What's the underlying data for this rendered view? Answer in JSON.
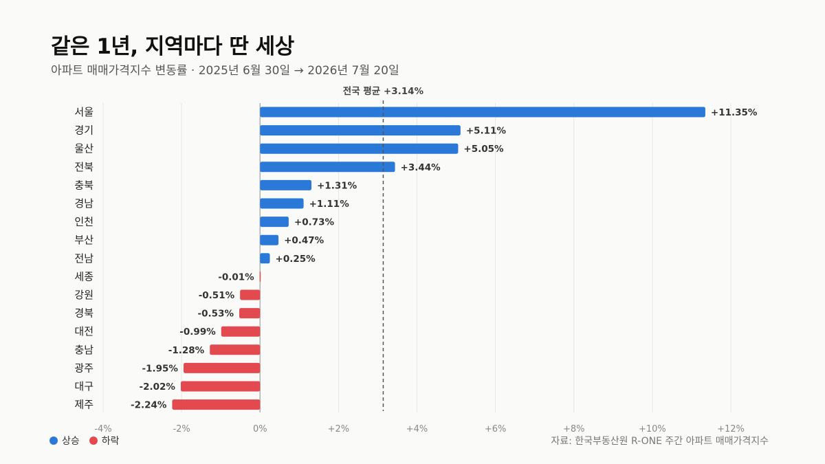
{
  "header": {
    "title": "같은 1년, 지역마다 딴 세상",
    "subtitle": "아파트 매매가격지수 변동률 · 2025년 6월 30일 → 2026년 7월 20일"
  },
  "legend": {
    "up_label": "상승",
    "down_label": "하락"
  },
  "source": "자료: 한국부동산원 R-ONE 주간 아파트 매매가격지수",
  "colors": {
    "up": "#2a79d8",
    "down": "#e24a4f",
    "grid": "#e6e6e6",
    "zero_axis": "#b0b0b0",
    "average_line": "#555555"
  },
  "chart_data": {
    "type": "bar",
    "orientation": "horizontal",
    "categories": [
      "서울",
      "경기",
      "울산",
      "전북",
      "충북",
      "경남",
      "인천",
      "부산",
      "전남",
      "세종",
      "강원",
      "경북",
      "대전",
      "충남",
      "광주",
      "대구",
      "제주"
    ],
    "values": [
      11.35,
      5.11,
      5.05,
      3.44,
      1.31,
      1.11,
      0.73,
      0.47,
      0.25,
      -0.01,
      -0.51,
      -0.53,
      -0.99,
      -1.28,
      -1.95,
      -2.02,
      -2.24
    ],
    "value_labels": [
      "+11.35%",
      "+5.11%",
      "+5.05%",
      "+3.44%",
      "+1.31%",
      "+1.11%",
      "+0.73%",
      "+0.47%",
      "+0.25%",
      "-0.01%",
      "-0.51%",
      "-0.53%",
      "-0.99%",
      "-1.28%",
      "-1.95%",
      "-2.02%",
      "-2.24%"
    ],
    "xlim": [
      -4,
      12
    ],
    "x_ticks": [
      -4,
      -2,
      0,
      2,
      4,
      6,
      8,
      10,
      12
    ],
    "x_tick_labels": [
      "-4%",
      "-2%",
      "0%",
      "+2%",
      "+4%",
      "+6%",
      "+8%",
      "+10%",
      "+12%"
    ],
    "grid": true,
    "reference_line": {
      "value": 3.14,
      "label": "전국 평균 +3.14%"
    },
    "legend_position": "bottom-left"
  }
}
